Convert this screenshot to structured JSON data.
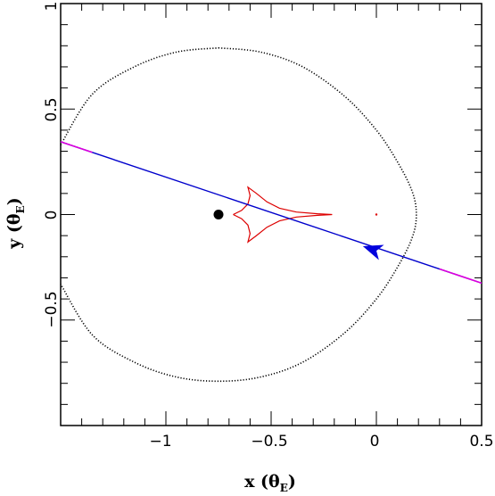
{
  "chart_data": {
    "type": "scatter",
    "xlim": [
      -1.5,
      0.5
    ],
    "ylim": [
      -1.0,
      1.0
    ],
    "x_ticks_major": [
      -1,
      -0.5,
      0,
      0.5
    ],
    "x_ticks_minor_step": 0.1,
    "y_ticks_major": [
      -0.5,
      0,
      0.5,
      1
    ],
    "y_ticks_minor_step": 0.1,
    "x_tick_labels": [
      "−1",
      "−0.5",
      "0",
      "0.5"
    ],
    "y_tick_labels": [
      "−0.5",
      "0",
      "0.5",
      "1"
    ],
    "xlabel": {
      "main": "x (θ",
      "sub": "E",
      "close": ")"
    },
    "ylabel": {
      "main": "y (θ",
      "sub": "E",
      "close": ")"
    },
    "grid": false,
    "critical_curve": {
      "color": "#000000",
      "style": "dotted",
      "points": [
        [
          -0.75,
          0.79
        ],
        [
          -0.55,
          0.77
        ],
        [
          -0.35,
          0.7
        ],
        [
          -0.15,
          0.56
        ],
        [
          0.0,
          0.4
        ],
        [
          0.1,
          0.25
        ],
        [
          0.17,
          0.11
        ],
        [
          0.19,
          0.0
        ],
        [
          0.17,
          -0.11
        ],
        [
          0.1,
          -0.25
        ],
        [
          0.0,
          -0.4
        ],
        [
          -0.15,
          -0.56
        ],
        [
          -0.35,
          -0.7
        ],
        [
          -0.55,
          -0.77
        ],
        [
          -0.75,
          -0.79
        ],
        [
          -0.95,
          -0.77
        ],
        [
          -1.15,
          -0.7
        ],
        [
          -1.35,
          -0.57
        ],
        [
          -1.5,
          -0.33
        ]
      ],
      "points_upper_left": [
        [
          -1.5,
          0.33
        ],
        [
          -1.35,
          0.57
        ],
        [
          -1.15,
          0.7
        ],
        [
          -0.95,
          0.77
        ],
        [
          -0.75,
          0.79
        ]
      ]
    },
    "caustic": {
      "color": "#dd0000",
      "points": [
        [
          -0.68,
          0.0
        ],
        [
          -0.64,
          0.02
        ],
        [
          -0.61,
          0.05
        ],
        [
          -0.6,
          0.09
        ],
        [
          -0.61,
          0.13
        ],
        [
          -0.57,
          0.1
        ],
        [
          -0.52,
          0.06
        ],
        [
          -0.46,
          0.03
        ],
        [
          -0.38,
          0.012
        ],
        [
          -0.28,
          0.004
        ],
        [
          -0.21,
          0.0
        ],
        [
          -0.28,
          -0.004
        ],
        [
          -0.38,
          -0.012
        ],
        [
          -0.46,
          -0.03
        ],
        [
          -0.52,
          -0.06
        ],
        [
          -0.57,
          -0.1
        ],
        [
          -0.61,
          -0.13
        ],
        [
          -0.6,
          -0.09
        ],
        [
          -0.61,
          -0.05
        ],
        [
          -0.64,
          -0.02
        ],
        [
          -0.68,
          0.0
        ]
      ],
      "secondary": [
        [
          0.0,
          0.0
        ]
      ]
    },
    "source_trajectory": {
      "color": "#0000cc",
      "start": [
        -1.5,
        0.345
      ],
      "end": [
        0.5,
        -0.325
      ],
      "ends_color": "#dd00dd",
      "magenta_segments": [
        [
          -1.5,
          -1.35
        ],
        [
          0.3,
          0.5
        ]
      ],
      "arrow_at": [
        -0.02,
        -0.165
      ],
      "arrow_color": "#0000dd"
    },
    "lens_star": {
      "x": -0.75,
      "y": 0.0,
      "color": "#000000"
    }
  }
}
